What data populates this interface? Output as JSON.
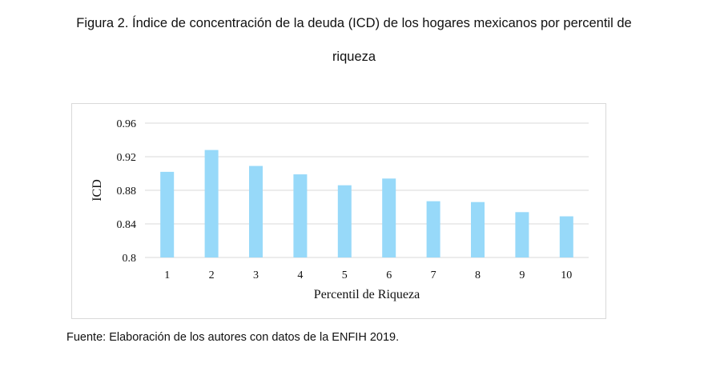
{
  "figure": {
    "title_line1": "Figura 2. Índice de concentración de la deuda (ICD) de los hogares mexicanos por percentil de",
    "title_line2": "riqueza",
    "source": "Fuente: Elaboración de los autores con datos de la ENFIH 2019."
  },
  "chart_data": {
    "type": "bar",
    "title": "",
    "xlabel": "Percentil de Riqueza",
    "ylabel": "ICD",
    "categories": [
      "1",
      "2",
      "3",
      "4",
      "5",
      "6",
      "7",
      "8",
      "9",
      "10"
    ],
    "values": [
      0.902,
      0.928,
      0.909,
      0.899,
      0.886,
      0.894,
      0.867,
      0.866,
      0.854,
      0.849
    ],
    "ylim": [
      0.8,
      0.96
    ],
    "yticks": [
      0.8,
      0.84,
      0.88,
      0.92,
      0.96
    ],
    "ytick_labels": [
      "0.8",
      "0.84",
      "0.88",
      "0.92",
      "0.96"
    ],
    "grid": true,
    "legend": "none",
    "bar_color": "#97d9f9",
    "grid_color": "#d9d9d9"
  }
}
